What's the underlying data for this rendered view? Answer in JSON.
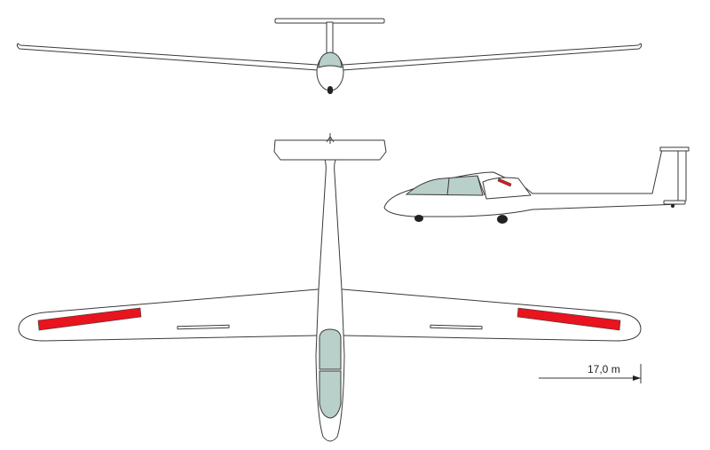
{
  "diagram": {
    "type": "three-view drawing",
    "views": [
      "front",
      "top",
      "side"
    ]
  },
  "dimension": {
    "label": "17,0  m"
  },
  "colors": {
    "outline": "#3a3a3a",
    "canopy": "#b9cfca",
    "aileron": "#e8141e",
    "wheel": "#222222",
    "background": "#ffffff"
  }
}
